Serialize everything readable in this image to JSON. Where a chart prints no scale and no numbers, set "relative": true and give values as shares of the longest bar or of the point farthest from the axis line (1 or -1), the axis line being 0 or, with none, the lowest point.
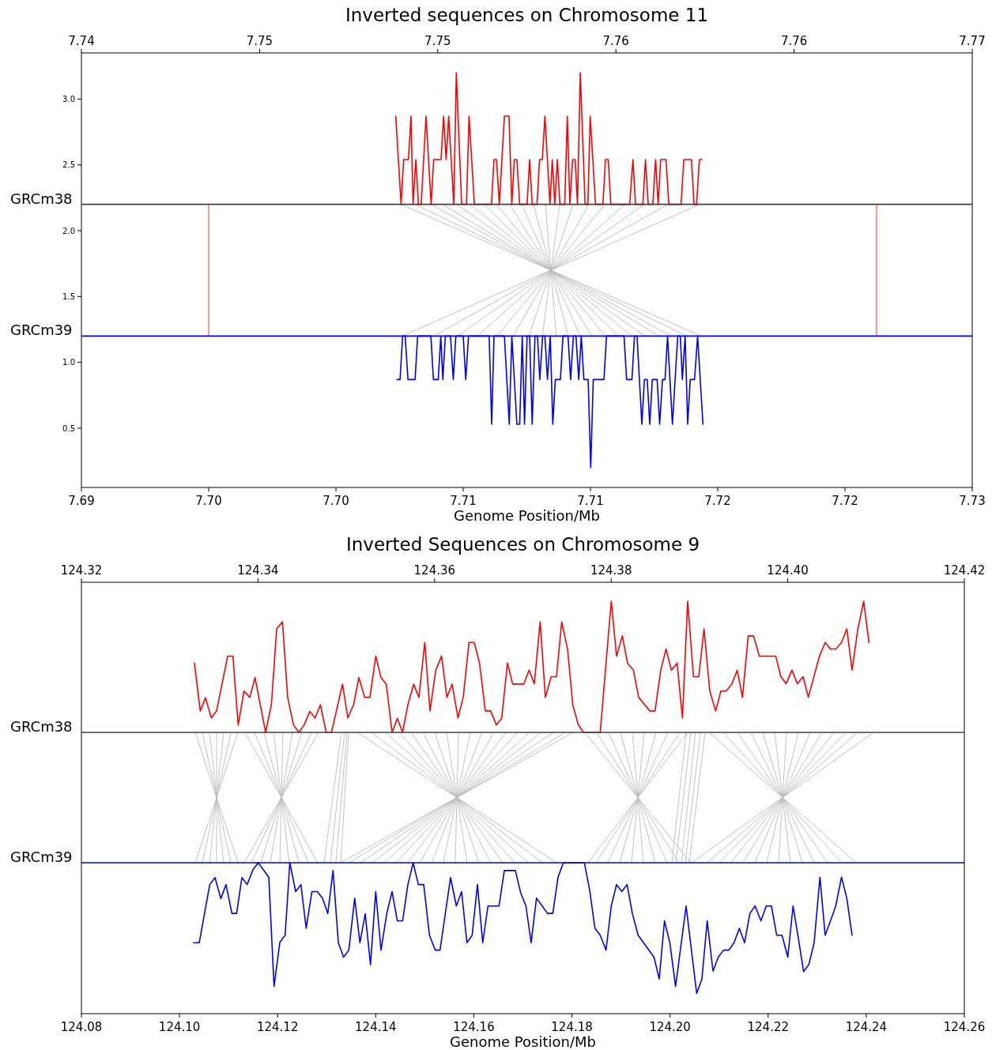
{
  "chart_data": [
    {
      "type": "line",
      "title": "Inverted sequences on Chromosome 11",
      "xlabel": "Genome Position/Mb",
      "xlim": [
        7.69,
        7.725
      ],
      "xticks": [
        {
          "value": 7.69,
          "label": "7.69"
        },
        {
          "value": 7.695,
          "label": "7.70"
        },
        {
          "value": 7.7,
          "label": "7.70"
        },
        {
          "value": 7.705,
          "label": "7.71"
        },
        {
          "value": 7.71,
          "label": "7.71"
        },
        {
          "value": 7.715,
          "label": "7.72"
        },
        {
          "value": 7.72,
          "label": "7.72"
        },
        {
          "value": 7.725,
          "label": "7.73"
        }
      ],
      "x2lim": [
        7.74,
        7.765
      ],
      "x2ticks": [
        {
          "value": 7.74,
          "label": "7.74"
        },
        {
          "value": 7.745,
          "label": "7.75"
        },
        {
          "value": 7.75,
          "label": "7.75"
        },
        {
          "value": 7.755,
          "label": "7.76"
        },
        {
          "value": 7.76,
          "label": "7.76"
        },
        {
          "value": 7.765,
          "label": "7.77"
        }
      ],
      "ylim": [
        0.05,
        3.35
      ],
      "yticks": [
        0.5,
        {
          "value": 1,
          "label": "1.0"
        },
        1.5,
        {
          "value": 2,
          "label": "2.0"
        },
        2.5,
        {
          "value": 3,
          "label": "3.0"
        }
      ],
      "ref_lines": [
        {
          "axis": "y",
          "value": 2.2,
          "label": "GRCm38",
          "color": "#404040"
        },
        {
          "axis": "y",
          "value": 1.2,
          "label": "GRCm39",
          "color": "#0000ff"
        }
      ],
      "series": [
        {
          "color": "#bbbbbb",
          "x": [
            7.70255,
            7.71435
          ],
          "values": [
            2.2,
            1.2
          ]
        },
        {
          "color": "#bbbbbb",
          "x": [
            7.70311,
            7.71379
          ],
          "values": [
            2.2,
            1.2
          ]
        },
        {
          "color": "#bbbbbb",
          "x": [
            7.70373,
            7.71317
          ],
          "values": [
            2.2,
            1.2
          ]
        },
        {
          "color": "#bbbbbb",
          "x": [
            7.70419,
            7.7127
          ],
          "values": [
            2.2,
            1.2
          ]
        },
        {
          "color": "#bbbbbb",
          "x": [
            7.70475,
            7.71214
          ],
          "values": [
            2.2,
            1.2
          ]
        },
        {
          "color": "#bbbbbb",
          "x": [
            7.70528,
            7.71162
          ],
          "values": [
            2.2,
            1.2
          ]
        },
        {
          "color": "#bbbbbb",
          "x": [
            7.70581,
            7.71109
          ],
          "values": [
            2.2,
            1.2
          ]
        },
        {
          "color": "#bbbbbb",
          "x": [
            7.7063,
            7.71059
          ],
          "values": [
            2.2,
            1.2
          ]
        },
        {
          "color": "#bbbbbb",
          "x": [
            7.70683,
            7.71006
          ],
          "values": [
            2.2,
            1.2
          ]
        },
        {
          "color": "#bbbbbb",
          "x": [
            7.7073,
            7.7096
          ],
          "values": [
            2.2,
            1.2
          ]
        },
        {
          "color": "#bbbbbb",
          "x": [
            7.70776,
            7.70913
          ],
          "values": [
            2.2,
            1.2
          ]
        },
        {
          "color": "#bbbbbb",
          "x": [
            7.70823,
            7.70866
          ],
          "values": [
            2.2,
            1.2
          ]
        },
        {
          "color": "#bbbbbb",
          "x": [
            7.70879,
            7.70811
          ],
          "values": [
            2.2,
            1.2
          ]
        },
        {
          "color": "#bbbbbb",
          "x": [
            7.70932,
            7.70758
          ],
          "values": [
            2.2,
            1.2
          ]
        },
        {
          "color": "#bbbbbb",
          "x": [
            7.70994,
            7.70696
          ],
          "values": [
            2.2,
            1.2
          ]
        },
        {
          "color": "#bbbbbb",
          "x": [
            7.71056,
            7.70634
          ],
          "values": [
            2.2,
            1.2
          ]
        },
        {
          "color": "#bbbbbb",
          "x": [
            7.71134,
            7.70556
          ],
          "values": [
            2.2,
            1.2
          ]
        },
        {
          "color": "#bbbbbb",
          "x": [
            7.71211,
            7.70478
          ],
          "values": [
            2.2,
            1.2
          ]
        },
        {
          "color": "#bbbbbb",
          "x": [
            7.71304,
            7.70385
          ],
          "values": [
            2.2,
            1.2
          ]
        },
        {
          "color": "#bbbbbb",
          "x": [
            7.71429,
            7.70261
          ],
          "values": [
            2.2,
            1.2
          ]
        },
        {
          "color": "#ff8080",
          "x": [
            7.695,
            7.695
          ],
          "values": [
            1.2,
            2.2
          ]
        },
        {
          "color": "#ff8080",
          "x": [
            7.72124,
            7.72124
          ],
          "values": [
            1.2,
            2.2
          ]
        },
        {
          "color": "#ff0000",
          "x": [
            7.70235,
            7.70256,
            7.70266,
            7.70285,
            7.70295,
            7.70303,
            7.70314,
            7.70324,
            7.70335,
            7.70354,
            7.70374,
            7.70384,
            7.70413,
            7.70423,
            7.70433,
            7.70443,
            7.70463,
            7.70473,
            7.70494,
            7.70513,
            7.70523,
            7.70544,
            7.70611,
            7.70621,
            7.70631,
            7.70642,
            7.70662,
            7.7068,
            7.70691,
            7.70701,
            7.70711,
            7.70722,
            7.70751,
            7.70761,
            7.70771,
            7.7079,
            7.708,
            7.70811,
            7.70821,
            7.70841,
            7.7085,
            7.7086,
            7.7087,
            7.7088,
            7.70899,
            7.70909,
            7.70919,
            7.7093,
            7.7094,
            7.70949,
            7.7096,
            7.70979,
            7.7099,
            7.70999,
            7.7102,
            7.71049,
            7.71059,
            7.7107,
            7.7108,
            7.71154,
            7.71167,
            7.71177,
            7.71206,
            7.71216,
            7.71227,
            7.71245,
            7.71256,
            7.71266,
            7.71276,
            7.71297,
            7.71308,
            7.71356,
            7.71367,
            7.71397,
            7.71407,
            7.71417,
            7.71428,
            7.71438
          ],
          "values": [
            2.87,
            2.2,
            2.54,
            2.54,
            2.87,
            2.2,
            2.54,
            2.2,
            2.2,
            2.87,
            2.2,
            2.54,
            2.54,
            2.87,
            2.54,
            2.87,
            2.2,
            3.2,
            2.2,
            2.2,
            2.87,
            2.2,
            2.2,
            2.54,
            2.54,
            2.2,
            2.87,
            2.87,
            2.2,
            2.54,
            2.54,
            2.2,
            2.2,
            2.54,
            2.2,
            2.2,
            2.54,
            2.54,
            2.87,
            2.2,
            2.54,
            2.2,
            2.54,
            2.2,
            2.2,
            2.87,
            2.2,
            2.54,
            2.54,
            2.2,
            3.2,
            2.2,
            2.2,
            2.87,
            2.2,
            2.2,
            2.54,
            2.54,
            2.2,
            2.2,
            2.54,
            2.2,
            2.2,
            2.54,
            2.2,
            2.2,
            2.54,
            2.2,
            2.54,
            2.54,
            2.2,
            2.2,
            2.54,
            2.54,
            2.2,
            2.2,
            2.54,
            2.54
          ]
        },
        {
          "color": "#0000ff",
          "x": [
            7.7024,
            7.70252,
            7.70262,
            7.70272,
            7.70283,
            7.70311,
            7.70321,
            7.70373,
            7.70383,
            7.70402,
            7.70412,
            7.7042,
            7.7043,
            7.7045,
            7.70461,
            7.70471,
            7.705,
            7.7051,
            7.70521,
            7.70602,
            7.70612,
            7.70621,
            7.70662,
            7.70681,
            7.70691,
            7.70711,
            7.70722,
            7.70732,
            7.70741,
            7.70751,
            7.70761,
            7.70771,
            7.70782,
            7.70792,
            7.70801,
            7.70812,
            7.70821,
            7.70831,
            7.70842,
            7.70852,
            7.70862,
            7.70882,
            7.70892,
            7.70912,
            7.70922,
            7.70933,
            7.70943,
            7.70954,
            7.70964,
            7.70974,
            7.70991,
            7.71001,
            7.71011,
            7.71053,
            7.71063,
            7.71132,
            7.71142,
            7.71163,
            7.71173,
            7.71183,
            7.71202,
            7.71212,
            7.71223,
            7.71233,
            7.71243,
            7.71262,
            7.71272,
            7.71283,
            7.71293,
            7.71303,
            7.71322,
            7.71343,
            7.71353,
            7.71361,
            7.71372,
            7.71382,
            7.71392,
            7.71409,
            7.71421,
            7.71442
          ],
          "values": [
            0.87,
            0.87,
            1.2,
            1.2,
            0.87,
            0.87,
            1.2,
            1.2,
            0.87,
            0.87,
            1.2,
            0.87,
            1.2,
            1.2,
            0.87,
            1.2,
            1.2,
            0.87,
            1.2,
            1.2,
            0.53,
            1.2,
            1.2,
            0.53,
            1.2,
            0.53,
            0.53,
            1.2,
            0.53,
            1.2,
            1.2,
            0.53,
            1.2,
            1.2,
            0.87,
            1.2,
            1.2,
            0.87,
            1.2,
            0.53,
            0.87,
            0.87,
            1.2,
            1.2,
            0.87,
            1.2,
            1.2,
            0.87,
            1.2,
            0.87,
            0.87,
            0.2,
            0.87,
            0.87,
            1.2,
            1.2,
            0.87,
            0.87,
            1.2,
            1.2,
            0.53,
            0.87,
            0.87,
            0.53,
            0.87,
            0.87,
            0.53,
            0.87,
            0.87,
            1.2,
            0.53,
            1.2,
            1.2,
            0.87,
            1.2,
            0.53,
            0.87,
            0.87,
            1.2,
            0.53
          ]
        }
      ]
    },
    {
      "type": "line",
      "title": "Inverted Sequences on Chromosome 9",
      "xlabel": "Genome Position/Mb",
      "relative": true,
      "xlim": [
        124.08,
        124.26
      ],
      "xticks": [
        124.08,
        {
          "value": 124.1,
          "label": "124.10"
        },
        124.12,
        124.14,
        124.16,
        124.18,
        {
          "value": 124.2,
          "label": "124.20"
        },
        124.22,
        124.24,
        124.26
      ],
      "x2lim": [
        124.32,
        124.42
      ],
      "x2ticks": [
        124.32,
        124.34,
        124.36,
        124.38,
        {
          "value": 124.4,
          "label": "124.40"
        },
        124.42
      ],
      "ref_lines": [
        {
          "axis": "y",
          "value": 0.682,
          "label": "GRCm38",
          "color": "#404040"
        },
        {
          "axis": "y",
          "value": 0.366,
          "label": "GRCm39",
          "color": "#0000ff"
        }
      ],
      "series": [
        {
          "color": "#bbbbbb",
          "x": [
            124.10321,
            124.11191
          ],
          "values": [
            0.682,
            0.366
          ]
        },
        {
          "color": "#bbbbbb",
          "x": [
            124.10466,
            124.11046
          ],
          "values": [
            0.682,
            0.366
          ]
        },
        {
          "color": "#bbbbbb",
          "x": [
            124.10611,
            124.10901
          ],
          "values": [
            0.682,
            0.366
          ]
        },
        {
          "color": "#bbbbbb",
          "x": [
            124.10756,
            124.10756
          ],
          "values": [
            0.682,
            0.366
          ]
        },
        {
          "color": "#bbbbbb",
          "x": [
            124.10901,
            124.10611
          ],
          "values": [
            0.682,
            0.366
          ]
        },
        {
          "color": "#bbbbbb",
          "x": [
            124.11046,
            124.10466
          ],
          "values": [
            0.682,
            0.366
          ]
        },
        {
          "color": "#bbbbbb",
          "x": [
            124.11191,
            124.10321
          ],
          "values": [
            0.682,
            0.366
          ]
        },
        {
          "color": "#bbbbbb",
          "x": [
            124.11336,
            124.12818
          ],
          "values": [
            0.682,
            0.366
          ]
        },
        {
          "color": "#bbbbbb",
          "x": [
            124.11529,
            124.12625
          ],
          "values": [
            0.682,
            0.366
          ]
        },
        {
          "color": "#bbbbbb",
          "x": [
            124.11722,
            124.12432
          ],
          "values": [
            0.682,
            0.366
          ]
        },
        {
          "color": "#bbbbbb",
          "x": [
            124.11916,
            124.12238
          ],
          "values": [
            0.682,
            0.366
          ]
        },
        {
          "color": "#bbbbbb",
          "x": [
            124.12109,
            124.12045
          ],
          "values": [
            0.682,
            0.366
          ]
        },
        {
          "color": "#bbbbbb",
          "x": [
            124.12303,
            124.11851
          ],
          "values": [
            0.682,
            0.366
          ]
        },
        {
          "color": "#bbbbbb",
          "x": [
            124.12496,
            124.11658
          ],
          "values": [
            0.682,
            0.366
          ]
        },
        {
          "color": "#bbbbbb",
          "x": [
            124.12689,
            124.11465
          ],
          "values": [
            0.682,
            0.366
          ]
        },
        {
          "color": "#bbbbbb",
          "x": [
            124.12834,
            124.1132
          ],
          "values": [
            0.682,
            0.366
          ]
        },
        {
          "color": "#bbbbbb",
          "x": [
            124.13302,
            124.12947
          ],
          "values": [
            0.682,
            0.366
          ]
        },
        {
          "color": "#bbbbbb",
          "x": [
            124.13366,
            124.13076
          ],
          "values": [
            0.682,
            0.366
          ]
        },
        {
          "color": "#bbbbbb",
          "x": [
            124.13415,
            124.13189
          ],
          "values": [
            0.682,
            0.366
          ]
        },
        {
          "color": "#bbbbbb",
          "x": [
            124.13447,
            124.13286
          ],
          "values": [
            0.682,
            0.366
          ]
        },
        {
          "color": "#bbbbbb",
          "x": [
            124.13624,
            124.17685
          ],
          "values": [
            0.682,
            0.366
          ]
        },
        {
          "color": "#bbbbbb",
          "x": [
            124.13914,
            124.17395
          ],
          "values": [
            0.682,
            0.366
          ]
        },
        {
          "color": "#bbbbbb",
          "x": [
            124.14204,
            124.17105
          ],
          "values": [
            0.682,
            0.366
          ]
        },
        {
          "color": "#bbbbbb",
          "x": [
            124.14478,
            124.16831
          ],
          "values": [
            0.682,
            0.366
          ]
        },
        {
          "color": "#bbbbbb",
          "x": [
            124.1472,
            124.16589
          ],
          "values": [
            0.682,
            0.366
          ]
        },
        {
          "color": "#bbbbbb",
          "x": [
            124.14961,
            124.16347
          ],
          "values": [
            0.682,
            0.366
          ]
        },
        {
          "color": "#bbbbbb",
          "x": [
            124.15203,
            124.16106
          ],
          "values": [
            0.682,
            0.366
          ]
        },
        {
          "color": "#bbbbbb",
          "x": [
            124.15445,
            124.15864
          ],
          "values": [
            0.682,
            0.366
          ]
        },
        {
          "color": "#bbbbbb",
          "x": [
            124.15687,
            124.15622
          ],
          "values": [
            0.682,
            0.366
          ]
        },
        {
          "color": "#bbbbbb",
          "x": [
            124.15928,
            124.1538
          ],
          "values": [
            0.682,
            0.366
          ]
        },
        {
          "color": "#bbbbbb",
          "x": [
            124.1617,
            124.15139
          ],
          "values": [
            0.682,
            0.366
          ]
        },
        {
          "color": "#bbbbbb",
          "x": [
            124.16412,
            124.14897
          ],
          "values": [
            0.682,
            0.366
          ]
        },
        {
          "color": "#bbbbbb",
          "x": [
            124.16654,
            124.14655
          ],
          "values": [
            0.682,
            0.366
          ]
        },
        {
          "color": "#bbbbbb",
          "x": [
            124.16895,
            124.14414
          ],
          "values": [
            0.682,
            0.366
          ]
        },
        {
          "color": "#bbbbbb",
          "x": [
            124.17137,
            124.14172
          ],
          "values": [
            0.682,
            0.366
          ]
        },
        {
          "color": "#bbbbbb",
          "x": [
            124.17379,
            124.1393
          ],
          "values": [
            0.682,
            0.366
          ]
        },
        {
          "color": "#bbbbbb",
          "x": [
            124.1762,
            124.13688
          ],
          "values": [
            0.682,
            0.366
          ]
        },
        {
          "color": "#bbbbbb",
          "x": [
            124.17862,
            124.13447
          ],
          "values": [
            0.682,
            0.366
          ]
        },
        {
          "color": "#bbbbbb",
          "x": [
            124.18023,
            124.13286
          ],
          "values": [
            0.682,
            0.366
          ]
        },
        {
          "color": "#bbbbbb",
          "x": [
            124.18265,
            124.20424
          ],
          "values": [
            0.682,
            0.366
          ]
        },
        {
          "color": "#bbbbbb",
          "x": [
            124.18507,
            124.20183
          ],
          "values": [
            0.682,
            0.366
          ]
        },
        {
          "color": "#bbbbbb",
          "x": [
            124.18748,
            124.19941
          ],
          "values": [
            0.682,
            0.366
          ]
        },
        {
          "color": "#bbbbbb",
          "x": [
            124.1899,
            124.19699
          ],
          "values": [
            0.682,
            0.366
          ]
        },
        {
          "color": "#bbbbbb",
          "x": [
            124.19232,
            124.19457
          ],
          "values": [
            0.682,
            0.366
          ]
        },
        {
          "color": "#bbbbbb",
          "x": [
            124.19474,
            124.19216
          ],
          "values": [
            0.682,
            0.366
          ]
        },
        {
          "color": "#bbbbbb",
          "x": [
            124.19715,
            124.18974
          ],
          "values": [
            0.682,
            0.366
          ]
        },
        {
          "color": "#bbbbbb",
          "x": [
            124.19957,
            124.18732
          ],
          "values": [
            0.682,
            0.366
          ]
        },
        {
          "color": "#bbbbbb",
          "x": [
            124.20199,
            124.18491
          ],
          "values": [
            0.682,
            0.366
          ]
        },
        {
          "color": "#bbbbbb",
          "x": [
            124.2036,
            124.18329
          ],
          "values": [
            0.682,
            0.366
          ]
        },
        {
          "color": "#bbbbbb",
          "x": [
            124.20328,
            124.20038
          ],
          "values": [
            0.682,
            0.366
          ]
        },
        {
          "color": "#bbbbbb",
          "x": [
            124.20424,
            124.20118
          ],
          "values": [
            0.682,
            0.366
          ]
        },
        {
          "color": "#bbbbbb",
          "x": [
            124.20521,
            124.20231
          ],
          "values": [
            0.682,
            0.366
          ]
        },
        {
          "color": "#bbbbbb",
          "x": [
            124.20618,
            124.20311
          ],
          "values": [
            0.682,
            0.366
          ]
        },
        {
          "color": "#bbbbbb",
          "x": [
            124.20714,
            124.20392
          ],
          "values": [
            0.682,
            0.366
          ]
        },
        {
          "color": "#bbbbbb",
          "x": [
            124.20795,
            124.23792
          ],
          "values": [
            0.682,
            0.366
          ]
        },
        {
          "color": "#bbbbbb",
          "x": [
            124.21085,
            124.23502
          ],
          "values": [
            0.682,
            0.366
          ]
        },
        {
          "color": "#bbbbbb",
          "x": [
            124.21375,
            124.23212
          ],
          "values": [
            0.682,
            0.366
          ]
        },
        {
          "color": "#bbbbbb",
          "x": [
            124.21649,
            124.22938
          ],
          "values": [
            0.682,
            0.366
          ]
        },
        {
          "color": "#bbbbbb",
          "x": [
            124.21891,
            124.22697
          ],
          "values": [
            0.682,
            0.366
          ]
        },
        {
          "color": "#bbbbbb",
          "x": [
            124.22133,
            124.22455
          ],
          "values": [
            0.682,
            0.366
          ]
        },
        {
          "color": "#bbbbbb",
          "x": [
            124.22374,
            124.22213
          ],
          "values": [
            0.682,
            0.366
          ]
        },
        {
          "color": "#bbbbbb",
          "x": [
            124.22616,
            124.21971
          ],
          "values": [
            0.682,
            0.366
          ]
        },
        {
          "color": "#bbbbbb",
          "x": [
            124.22858,
            124.2173
          ],
          "values": [
            0.682,
            0.366
          ]
        },
        {
          "color": "#bbbbbb",
          "x": [
            124.231,
            124.21488
          ],
          "values": [
            0.682,
            0.366
          ]
        },
        {
          "color": "#bbbbbb",
          "x": [
            124.23341,
            124.21246
          ],
          "values": [
            0.682,
            0.366
          ]
        },
        {
          "color": "#bbbbbb",
          "x": [
            124.23583,
            124.21005
          ],
          "values": [
            0.682,
            0.366
          ]
        },
        {
          "color": "#bbbbbb",
          "x": [
            124.23824,
            124.20763
          ],
          "values": [
            0.682,
            0.366
          ]
        },
        {
          "color": "#bbbbbb",
          "x": [
            124.24147,
            124.2044
          ],
          "values": [
            0.682,
            0.366
          ]
        },
        {
          "color": "#ff0000",
          "x": [
            124.10305,
            124.10423,
            124.1053,
            124.10649,
            124.10756,
            124.10982,
            124.11089,
            124.11196,
            124.11315,
            124.11433,
            124.1154,
            124.11755,
            124.11873,
            124.11981,
            124.12099,
            124.12206,
            124.12325,
            124.12432,
            124.1254,
            124.12658,
            124.12765,
            124.12872,
            124.12991,
            124.13098,
            124.13324,
            124.13431,
            124.13549,
            124.13657,
            124.13775,
            124.13882,
            124.14001,
            124.14108,
            124.14215,
            124.14334,
            124.14441,
            124.14548,
            124.14656,
            124.14774,
            124.14881,
            124.15,
            124.15107,
            124.15225,
            124.15343,
            124.15451,
            124.15558,
            124.15676,
            124.15784,
            124.15902,
            124.16009,
            124.16117,
            124.16235,
            124.16342,
            124.1646,
            124.16568,
            124.16686,
            124.16793,
            124.17019,
            124.17126,
            124.17234,
            124.17352,
            124.17459,
            124.17578,
            124.17685,
            124.17792,
            124.17911,
            124.18018,
            124.18125,
            124.18233,
            124.18577,
            124.18802,
            124.1891,
            124.19028,
            124.19135,
            124.19254,
            124.19361,
            124.19587,
            124.19694,
            124.19812,
            124.19919,
            124.20027,
            124.20145,
            124.20253,
            124.2036,
            124.20478,
            124.20586,
            124.20693,
            124.20811,
            124.2093,
            124.21037,
            124.21144,
            124.21262,
            124.2137,
            124.21477,
            124.21595,
            124.21703,
            124.21821,
            124.22154,
            124.22261,
            124.22369,
            124.22487,
            124.22594,
            124.22713,
            124.2282,
            124.23046,
            124.23164,
            124.23271,
            124.23379,
            124.23497,
            124.23604,
            124.23712,
            124.2383,
            124.23948,
            124.24056
          ],
          "values": [
            0.85,
            0.734,
            0.766,
            0.717,
            0.734,
            0.867,
            0.867,
            0.7,
            0.782,
            0.767,
            0.815,
            0.682,
            0.749,
            0.933,
            0.95,
            0.766,
            0.7,
            0.682,
            0.7,
            0.733,
            0.717,
            0.749,
            0.682,
            0.682,
            0.799,
            0.717,
            0.749,
            0.815,
            0.767,
            0.767,
            0.867,
            0.815,
            0.799,
            0.682,
            0.716,
            0.682,
            0.749,
            0.799,
            0.767,
            0.9,
            0.734,
            0.833,
            0.867,
            0.767,
            0.799,
            0.717,
            0.767,
            0.9,
            0.9,
            0.85,
            0.734,
            0.734,
            0.7,
            0.716,
            0.85,
            0.799,
            0.799,
            0.833,
            0.8,
            0.95,
            0.767,
            0.817,
            0.817,
            0.95,
            0.884,
            0.749,
            0.702,
            0.682,
            0.682,
            1.0,
            0.867,
            0.916,
            0.849,
            0.833,
            0.767,
            0.734,
            0.734,
            0.833,
            0.884,
            0.833,
            0.85,
            0.717,
            1.0,
            0.817,
            0.817,
            0.933,
            0.782,
            0.734,
            0.782,
            0.782,
            0.8,
            0.833,
            0.767,
            0.916,
            0.916,
            0.867,
            0.867,
            0.817,
            0.8,
            0.833,
            0.8,
            0.817,
            0.767,
            0.867,
            0.9,
            0.884,
            0.884,
            0.9,
            0.933,
            0.833,
            0.933,
            1.0,
            0.9
          ]
        },
        {
          "color": "#0000ff",
          "x": [
            124.10289,
            124.10402,
            124.10616,
            124.10724,
            124.10842,
            124.10949,
            124.11068,
            124.11164,
            124.11272,
            124.11379,
            124.11497,
            124.11605,
            124.1182,
            124.11927,
            124.12045,
            124.12153,
            124.12249,
            124.12368,
            124.12475,
            124.12582,
            124.127,
            124.12808,
            124.12915,
            124.13023,
            124.1313,
            124.13238,
            124.13345,
            124.13452,
            124.13571,
            124.13678,
            124.13786,
            124.13893,
            124.14,
            124.14108,
            124.14226,
            124.14333,
            124.14441,
            124.14548,
            124.14656,
            124.14763,
            124.1487,
            124.14978,
            124.15096,
            124.15214,
            124.15311,
            124.15418,
            124.15526,
            124.15644,
            124.15751,
            124.15859,
            124.15966,
            124.16074,
            124.16181,
            124.16289,
            124.16514,
            124.16622,
            124.16847,
            124.16955,
            124.17062,
            124.17169,
            124.17277,
            124.17502,
            124.1761,
            124.17717,
            124.17825,
            124.18254,
            124.18362,
            124.18469,
            124.18577,
            124.18695,
            124.18802,
            124.1891,
            124.19017,
            124.19125,
            124.19232,
            124.1935,
            124.19673,
            124.1978,
            124.19887,
            124.19995,
            124.20113,
            124.20328,
            124.20543,
            124.2065,
            124.20758,
            124.20876,
            124.20983,
            124.21091,
            124.21198,
            124.21305,
            124.21413,
            124.2152,
            124.21628,
            124.21735,
            124.21853,
            124.21961,
            124.22068,
            124.22175,
            124.22283,
            124.22401,
            124.22508,
            124.22616,
            124.22723,
            124.2283,
            124.22938,
            124.23056,
            124.23163,
            124.23271,
            124.23378,
            124.23496,
            124.23604,
            124.23711
          ],
          "values": [
            0.172,
            0.172,
            0.313,
            0.33,
            0.279,
            0.313,
            0.243,
            0.243,
            0.33,
            0.313,
            0.349,
            0.366,
            0.331,
            0.066,
            0.173,
            0.19,
            0.366,
            0.296,
            0.313,
            0.207,
            0.296,
            0.296,
            0.28,
            0.243,
            0.347,
            0.172,
            0.137,
            0.154,
            0.28,
            0.172,
            0.242,
            0.119,
            0.296,
            0.154,
            0.243,
            0.296,
            0.225,
            0.225,
            0.313,
            0.366,
            0.313,
            0.313,
            0.19,
            0.154,
            0.154,
            0.242,
            0.33,
            0.261,
            0.296,
            0.172,
            0.19,
            0.313,
            0.172,
            0.261,
            0.261,
            0.347,
            0.347,
            0.293,
            0.261,
            0.172,
            0.28,
            0.243,
            0.243,
            0.331,
            0.366,
            0.366,
            0.299,
            0.207,
            0.19,
            0.154,
            0.261,
            0.313,
            0.296,
            0.313,
            0.243,
            0.19,
            0.137,
            0.084,
            0.225,
            0.173,
            0.066,
            0.261,
            0.049,
            0.084,
            0.225,
            0.103,
            0.137,
            0.154,
            0.154,
            0.172,
            0.207,
            0.172,
            0.243,
            0.261,
            0.225,
            0.261,
            0.261,
            0.19,
            0.19,
            0.137,
            0.261,
            0.183,
            0.102,
            0.119,
            0.172,
            0.331,
            0.19,
            0.225,
            0.261,
            0.331,
            0.28,
            0.19
          ]
        }
      ]
    }
  ]
}
